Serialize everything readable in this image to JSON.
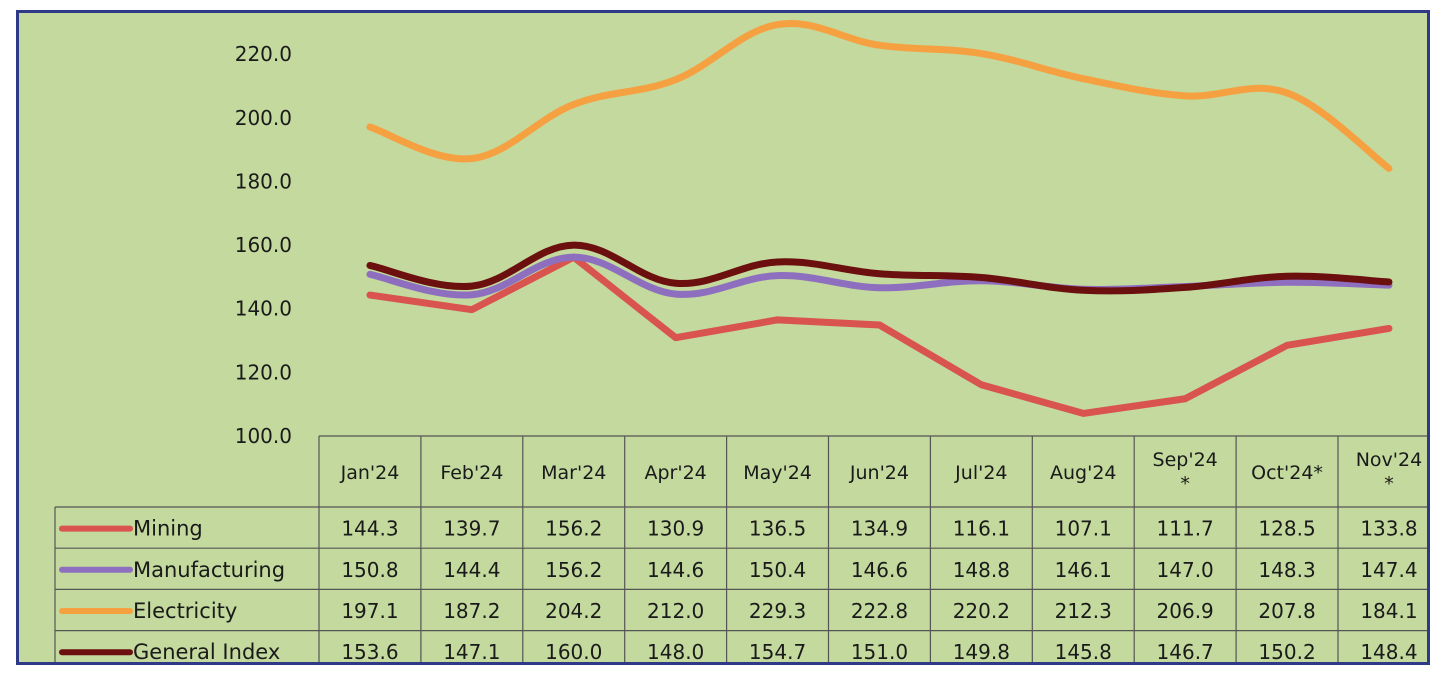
{
  "chart_data": {
    "type": "line",
    "title": "",
    "xlabel": "",
    "ylabel": "",
    "ylim": [
      100,
      230
    ],
    "y_ticks": [
      "100.0",
      "120.0",
      "140.0",
      "160.0",
      "180.0",
      "200.0",
      "220.0"
    ],
    "grid": false,
    "legend": "table-rows",
    "categories": [
      "Jan'24",
      "Feb'24",
      "Mar'24",
      "Apr'24",
      "May'24",
      "Jun'24",
      "Jul'24",
      "Aug'24",
      "Sep'24 *",
      "Oct'24*",
      "Nov'24 *"
    ],
    "series": [
      {
        "name": "Mining",
        "color": "#d9534f",
        "values": [
          144.3,
          139.7,
          156.2,
          130.9,
          136.5,
          134.9,
          116.1,
          107.1,
          111.7,
          128.5,
          133.8
        ],
        "labels": [
          "144.3",
          "139.7",
          "156.2",
          "130.9",
          "136.5",
          "134.9",
          "116.1",
          "107.1",
          "111.7",
          "128.5",
          "133.8"
        ]
      },
      {
        "name": "Manufacturing",
        "color": "#8e6fbf",
        "values": [
          150.8,
          144.4,
          156.2,
          144.6,
          150.4,
          146.6,
          148.8,
          146.1,
          147.0,
          148.3,
          147.4
        ],
        "labels": [
          "150.8",
          "144.4",
          "156.2",
          "144.6",
          "150.4",
          "146.6",
          "148.8",
          "146.1",
          "147.0",
          "148.3",
          "147.4"
        ]
      },
      {
        "name": "Electricity",
        "color": "#f5a142",
        "values": [
          197.1,
          187.2,
          204.2,
          212.0,
          229.3,
          222.8,
          220.2,
          212.3,
          206.9,
          207.8,
          184.1
        ],
        "labels": [
          "197.1",
          "187.2",
          "204.2",
          "212.0",
          "229.3",
          "222.8",
          "220.2",
          "212.3",
          "206.9",
          "207.8",
          "184.1"
        ]
      },
      {
        "name": "General Index",
        "color": "#6b0f0f",
        "values": [
          153.6,
          147.1,
          160.0,
          148.0,
          154.7,
          151.0,
          149.8,
          145.8,
          146.7,
          150.2,
          148.4
        ],
        "labels": [
          "153.6",
          "147.1",
          "160.0",
          "148.0",
          "154.7",
          "151.0",
          "149.8",
          "145.8",
          "146.7",
          "150.2",
          "148.4"
        ]
      }
    ]
  }
}
